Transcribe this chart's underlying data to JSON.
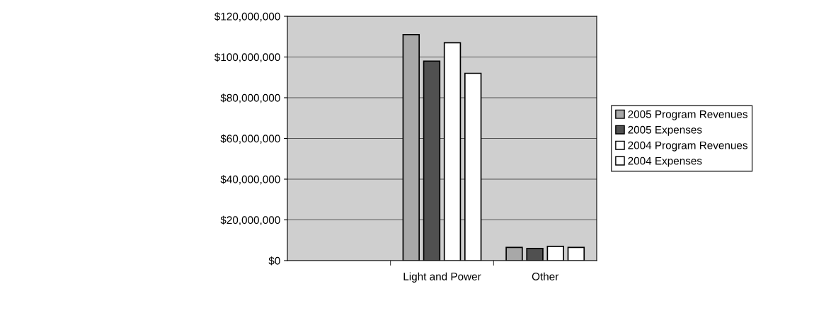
{
  "chart_data": {
    "type": "bar",
    "categories": [
      null,
      "Light and Power",
      "Other"
    ],
    "series": [
      {
        "name": "2005 Program Revenues",
        "color": "#a8a8a8",
        "values": [
          null,
          111000000,
          6500000
        ]
      },
      {
        "name": "2005 Expenses",
        "color": "#505050",
        "values": [
          null,
          98000000,
          6000000
        ]
      },
      {
        "name": "2004 Program Revenues",
        "color": "#ffffff",
        "values": [
          null,
          107000000,
          7000000
        ]
      },
      {
        "name": "2004 Expenses",
        "color": "#ffffff",
        "values": [
          null,
          92000000,
          6500000
        ]
      }
    ],
    "ylim": [
      0,
      120000000
    ],
    "yticks": [
      {
        "value": 0,
        "label": "$0"
      },
      {
        "value": 20000000,
        "label": "$20,000,000"
      },
      {
        "value": 40000000,
        "label": "$40,000,000"
      },
      {
        "value": 60000000,
        "label": "$60,000,000"
      },
      {
        "value": 80000000,
        "label": "$80,000,000"
      },
      {
        "value": 100000000,
        "label": "$100,000,000"
      },
      {
        "value": 120000000,
        "label": "$120,000,000"
      }
    ],
    "grid": "y",
    "legend": "right"
  }
}
